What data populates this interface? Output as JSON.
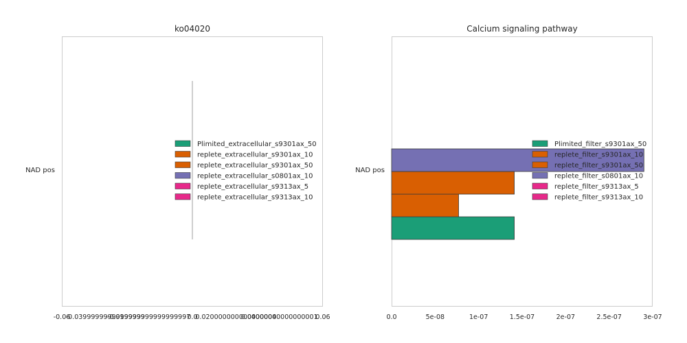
{
  "chart_data": [
    {
      "type": "bar",
      "orientation": "horizontal",
      "title": "ko04020",
      "categories": [
        "NAD pos"
      ],
      "xlim": [
        -0.06,
        0.06
      ],
      "x_tick_labels": [
        "-0.06",
        "-0.03999999999999999",
        "-0.019999999999999997",
        "0.0",
        "0.020000000000000004",
        "0.04000000000000001",
        "0.06"
      ],
      "x_ticks": [
        -0.06,
        -0.04,
        -0.02,
        0.0,
        0.02,
        0.04,
        0.06
      ],
      "series": [
        {
          "name": "Plimited_extracellular_s9301ax_50",
          "color": "#1b9e77",
          "values": [
            0
          ]
        },
        {
          "name": "replete_extracellular_s9301ax_10",
          "color": "#d95f02",
          "values": [
            0
          ]
        },
        {
          "name": "replete_extracellular_s9301ax_50",
          "color": "#d95f02",
          "values": [
            0
          ]
        },
        {
          "name": "replete_extracellular_s0801ax_10",
          "color": "#7570b3",
          "values": [
            0
          ]
        },
        {
          "name": "replete_extracellular_s9313ax_5",
          "color": "#e7298a",
          "values": [
            0
          ]
        },
        {
          "name": "replete_extracellular_s9313ax_10",
          "color": "#e7298a",
          "values": [
            0
          ]
        }
      ],
      "legend": "center-right",
      "grid": false
    },
    {
      "type": "bar",
      "orientation": "horizontal",
      "title": "Calcium signaling pathway",
      "categories": [
        "NAD pos"
      ],
      "xlim": [
        0,
        3e-07
      ],
      "x_tick_labels": [
        "0.0",
        "5e-08",
        "1e-07",
        "1.5e-07",
        "2e-07",
        "2.5e-07",
        "3e-07"
      ],
      "x_ticks": [
        0,
        5e-08,
        1e-07,
        1.5e-07,
        2e-07,
        2.5e-07,
        3e-07
      ],
      "series": [
        {
          "name": "Plimited_filter_s9301ax_50",
          "color": "#1b9e77",
          "values": [
            1.41e-07
          ]
        },
        {
          "name": "replete_filter_s9301ax_10",
          "color": "#d95f02",
          "values": [
            7.7e-08
          ]
        },
        {
          "name": "replete_filter_s9301ax_50",
          "color": "#d95f02",
          "values": [
            1.41e-07
          ]
        },
        {
          "name": "replete_filter_s0801ax_10",
          "color": "#7570b3",
          "values": [
            2.9e-07
          ]
        },
        {
          "name": "replete_filter_s9313ax_5",
          "color": "#e7298a",
          "values": [
            0
          ]
        },
        {
          "name": "replete_filter_s9313ax_10",
          "color": "#e7298a",
          "values": [
            0
          ]
        }
      ],
      "legend": "center-right",
      "grid": false
    }
  ]
}
